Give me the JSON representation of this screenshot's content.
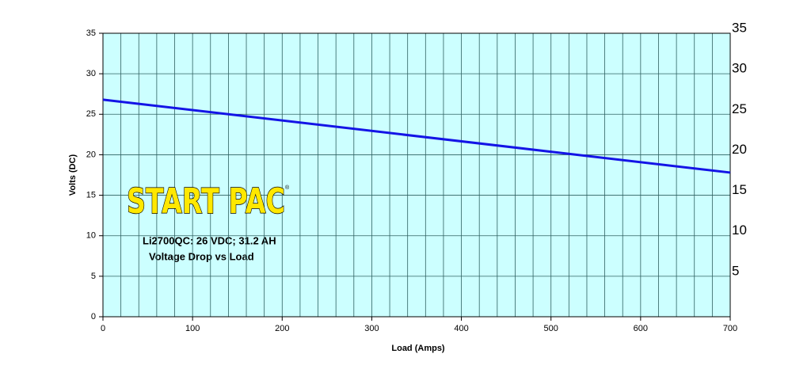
{
  "chart_data": {
    "type": "line",
    "logo": "START PAC",
    "logo_mark": "®",
    "title": "Li2700QC: 26 VDC; 31.2 AH",
    "subtitle": "Voltage Drop vs Load",
    "x_label": "Load (Amps)",
    "y_label": "Volts (DC)",
    "x": [
      0,
      700
    ],
    "series": [
      {
        "name": "Voltage",
        "color": "#1414e6",
        "values": [
          26.8,
          17.8
        ]
      }
    ],
    "xlim": [
      0,
      700
    ],
    "xticks": [
      0,
      100,
      200,
      300,
      400,
      500,
      600,
      700
    ],
    "xminorticks": [
      0,
      20,
      40,
      60,
      80,
      100,
      120,
      140,
      160,
      180,
      200,
      220,
      240,
      260,
      280,
      300,
      320,
      340,
      360,
      380,
      400,
      420,
      440,
      460,
      480,
      500,
      520,
      540,
      560,
      580,
      600,
      620,
      640,
      660,
      680,
      700
    ],
    "ylim": [
      0,
      35
    ],
    "yticks": [
      0,
      5,
      10,
      15,
      20,
      25,
      30,
      35
    ],
    "y2lim": [
      0,
      35
    ],
    "y2ticks": [
      5,
      10,
      15,
      20,
      25,
      30,
      35
    ],
    "grid": true,
    "background": "#ccffff"
  }
}
